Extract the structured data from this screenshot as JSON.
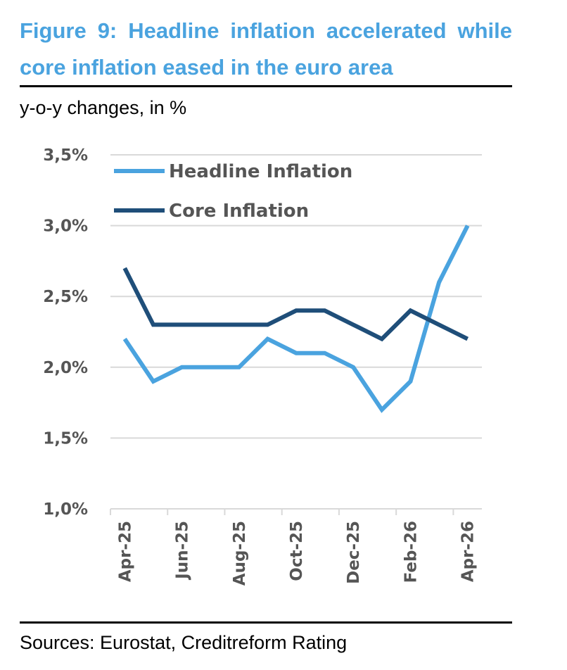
{
  "title": "Figure 9: Headline inflation accelerated while core inflation eased in the euro area",
  "subtitle": "y-o-y changes, in %",
  "source": "Sources: Eurostat, Creditreform Rating",
  "chart_data": {
    "type": "line",
    "x": [
      "Apr-25",
      "May-25",
      "Jun-25",
      "Jul-25",
      "Aug-25",
      "Sep-25",
      "Oct-25",
      "Nov-25",
      "Dec-25",
      "Jan-26",
      "Feb-26",
      "Mar-26",
      "Apr-26"
    ],
    "x_tick_labels": [
      "Apr-25",
      "Jun-25",
      "Aug-25",
      "Oct-25",
      "Dec-25",
      "Feb-26",
      "Apr-26"
    ],
    "y_tick_labels": [
      "3,5%",
      "3,0%",
      "2,5%",
      "2,0%",
      "1,5%",
      "1,0%"
    ],
    "y_ticks": [
      3.5,
      3.0,
      2.5,
      2.0,
      1.5,
      1.0
    ],
    "ylim": [
      1.0,
      3.5
    ],
    "grid": true,
    "legend_position": "top-left",
    "series": [
      {
        "name": "Headline Inflation",
        "color": "#4aa3df",
        "values": [
          2.2,
          1.9,
          2.0,
          2.0,
          2.0,
          2.2,
          2.1,
          2.1,
          2.0,
          1.7,
          1.9,
          2.6,
          3.0
        ]
      },
      {
        "name": "Core Inflation",
        "color": "#1f4e79",
        "values": [
          2.7,
          2.3,
          2.3,
          2.3,
          2.3,
          2.3,
          2.4,
          2.4,
          2.3,
          2.2,
          2.4,
          2.3,
          2.2
        ]
      }
    ]
  }
}
